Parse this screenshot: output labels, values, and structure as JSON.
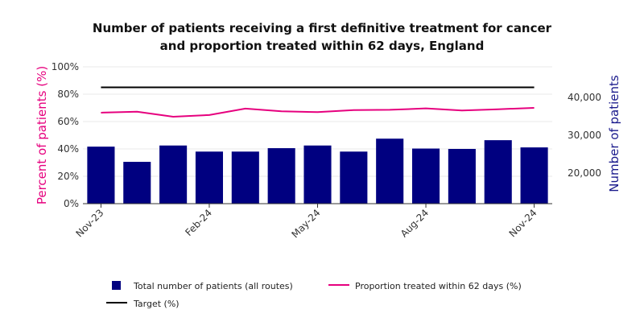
{
  "chart_data": {
    "type": "bar",
    "title_line1": "Number of patients receiving a first definitive treatment for cancer",
    "title_line2": "and proportion treated within 62 days, England",
    "ylabel_left": "Percent of patients (%)",
    "ylabel_right": "Number of patients",
    "x_tick_labels": [
      "Nov-23",
      "Feb-24",
      "May-24",
      "Aug-24",
      "Nov-24"
    ],
    "x_tick_indices": [
      0,
      3,
      6,
      9,
      12
    ],
    "y_left_ticks": [
      "0%",
      "20%",
      "40%",
      "60%",
      "80%",
      "100%"
    ],
    "y_left_range": [
      0,
      100
    ],
    "y_right_ticks": [
      "20,000",
      "30,000",
      "40,000"
    ],
    "y_right_tick_values": [
      20000,
      30000,
      40000
    ],
    "y_right_range": [
      12000,
      48000
    ],
    "categories": [
      "Nov-23",
      "Dec-23",
      "Jan-24",
      "Feb-24",
      "Mar-24",
      "Apr-24",
      "May-24",
      "Jun-24",
      "Jul-24",
      "Aug-24",
      "Sep-24",
      "Oct-24",
      "Nov-24"
    ],
    "series": [
      {
        "name": "Total number of patients (all routes)",
        "type": "bar",
        "axis": "right",
        "color": "#000080",
        "values": [
          27000,
          23000,
          27300,
          25700,
          25700,
          26600,
          27300,
          25700,
          29100,
          26500,
          26400,
          28700,
          26800
        ]
      },
      {
        "name": "Proportion treated within 62 days (%)",
        "type": "line",
        "axis": "left",
        "color": "#e6007e",
        "values": [
          66.5,
          67.2,
          63.5,
          64.8,
          69.5,
          67.5,
          66.9,
          68.4,
          68.6,
          69.6,
          68.1,
          69.0,
          70.0
        ]
      },
      {
        "name": "Target (%)",
        "type": "line",
        "axis": "left",
        "color": "#000000",
        "values": [
          85,
          85,
          85,
          85,
          85,
          85,
          85,
          85,
          85,
          85,
          85,
          85,
          85
        ]
      }
    ],
    "grid": true,
    "legend_position": "bottom"
  }
}
